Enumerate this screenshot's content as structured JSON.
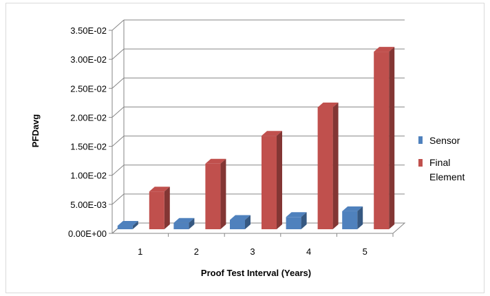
{
  "chart_data": {
    "type": "bar",
    "style": "3d-clustered-column",
    "categories": [
      "1",
      "2",
      "3",
      "4",
      "5"
    ],
    "series": [
      {
        "name": "Sensor",
        "color": "#4F81BD",
        "values": [
          0.0006,
          0.0011,
          0.0016,
          0.0021,
          0.0031
        ]
      },
      {
        "name": "Final Element",
        "color": "#C0504D",
        "values": [
          0.0065,
          0.0113,
          0.0161,
          0.021,
          0.0306
        ]
      }
    ],
    "xlabel": "Proof Test Interval (Years)",
    "ylabel": "PFDavg",
    "ylim": [
      0,
      0.035
    ],
    "yticks": [
      {
        "value": 0,
        "label": "0.00E+00"
      },
      {
        "value": 0.005,
        "label": "5.00E-03"
      },
      {
        "value": 0.01,
        "label": "1.00E-02"
      },
      {
        "value": 0.015,
        "label": "1.50E-02"
      },
      {
        "value": 0.02,
        "label": "2.00E-02"
      },
      {
        "value": 0.025,
        "label": "2.50E-02"
      },
      {
        "value": 0.03,
        "label": "3.00E-02"
      },
      {
        "value": 0.035,
        "label": "3.50E-02"
      }
    ],
    "legend": {
      "position": "right",
      "labels": [
        "Sensor",
        "Final",
        "Element"
      ]
    },
    "grid": true
  }
}
